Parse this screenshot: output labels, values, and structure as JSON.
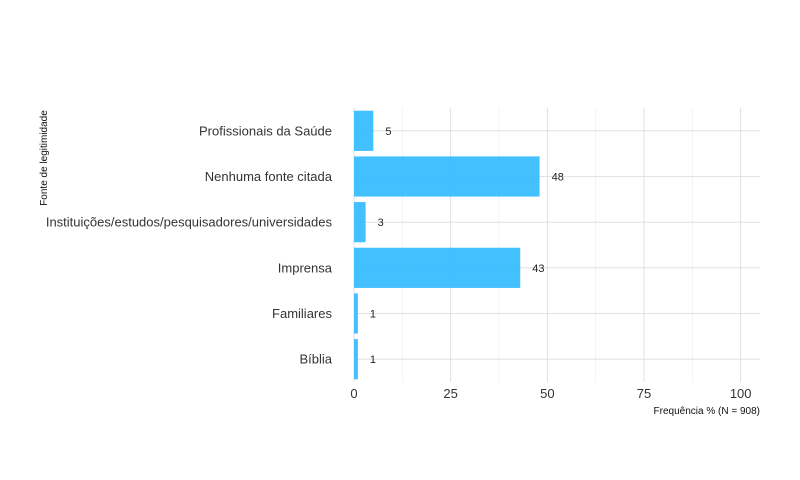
{
  "chart_data": {
    "type": "bar",
    "orientation": "horizontal",
    "categories": [
      "Profissionais da Saúde",
      "Nenhuma fonte citada",
      "Instituições/estudos/pesquisadores/universidades",
      "Imprensa",
      "Familiares",
      "Bíblia"
    ],
    "values": [
      5,
      48,
      3,
      43,
      1,
      1
    ],
    "data_labels": [
      "5",
      "48",
      "3",
      "43",
      "1",
      "1"
    ],
    "xlabel": "Frequência % (N = 908)",
    "ylabel": "Fonte de legitimidade",
    "xlim": [
      0,
      105
    ],
    "xticks": [
      0,
      25,
      50,
      75,
      100
    ],
    "xtick_labels": [
      "0",
      "25",
      "50",
      "75",
      "100"
    ],
    "grid": true,
    "legend": "none",
    "bar_color": "#33bbff"
  }
}
